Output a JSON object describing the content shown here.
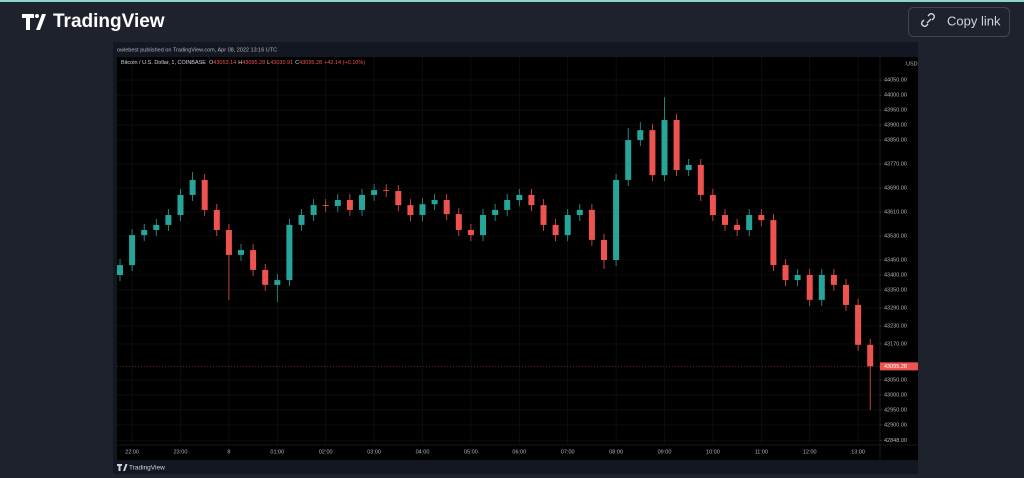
{
  "header": {
    "logo": "TradingView",
    "button": "Copy link"
  },
  "publish_note": "owlebest published on TradingView.com, Apr 08, 2022 13:16 UTC",
  "chart_data": {
    "type": "candlestick",
    "symbol": "Bitcoin / U.S. Dollar, 1, COINBASE",
    "ohlc_legend": [
      {
        "key": "O",
        "value": "43053.14"
      },
      {
        "key": "H",
        "value": "43095.28"
      },
      {
        "key": "L",
        "value": "43030.91"
      },
      {
        "key": "C",
        "value": "43095.28"
      }
    ],
    "change": "+42.14 (+0.10%)",
    "currency": "USD",
    "last_price_label": "43095.28",
    "up_color": "#26a69a",
    "down_color": "#ef5350",
    "categories": [
      null,
      "22:00",
      null,
      null,
      null,
      "23:00",
      null,
      null,
      null,
      "8",
      null,
      null,
      null,
      "01:00",
      null,
      null,
      null,
      "02:00",
      null,
      null,
      null,
      "03:00",
      null,
      null,
      null,
      "04:00",
      null,
      null,
      null,
      "05:00",
      null,
      null,
      null,
      "06:00",
      null,
      null,
      null,
      "07:00",
      null,
      null,
      null,
      "08:00",
      null,
      null,
      null,
      "09:00",
      null,
      null,
      null,
      "10:00",
      null,
      null,
      null,
      "11:00",
      null,
      null,
      null,
      "12:00",
      null,
      null,
      null,
      "13:00",
      null
    ],
    "open": [
      43400,
      43433,
      43533,
      43550,
      43567,
      43600,
      43667,
      43717,
      43617,
      43550,
      43467,
      43483,
      43417,
      43367,
      43383,
      43567,
      43600,
      43633,
      43630,
      43650,
      43617,
      43667,
      43683,
      43680,
      43633,
      43600,
      43636,
      43650,
      43603,
      43550,
      43533,
      43600,
      43617,
      43650,
      43667,
      43633,
      43567,
      43533,
      43600,
      43617,
      43517,
      43450,
      43717,
      43850,
      43883,
      43733,
      43917,
      43750,
      43767,
      43667,
      43600,
      43567,
      43550,
      43600,
      43583,
      43433,
      43383,
      43400,
      43317,
      43400,
      43367,
      43300,
      43167
    ],
    "high": [
      43453,
      43553,
      43570,
      43587,
      43620,
      43687,
      43743,
      43737,
      43637,
      43570,
      43503,
      43503,
      43437,
      43403,
      43587,
      43620,
      43653,
      43653,
      43670,
      43670,
      43687,
      43703,
      43703,
      43700,
      43653,
      43656,
      43670,
      43670,
      43623,
      43570,
      43620,
      43637,
      43670,
      43687,
      43687,
      43653,
      43587,
      43620,
      43637,
      43637,
      43537,
      43737,
      43890,
      43910,
      43903,
      43993,
      43937,
      43787,
      43787,
      43687,
      43620,
      43587,
      43620,
      43620,
      43603,
      43453,
      43420,
      43420,
      43420,
      43420,
      43387,
      43320,
      43187
    ],
    "low": [
      43380,
      43413,
      43513,
      43530,
      43547,
      43580,
      43647,
      43597,
      43530,
      43317,
      43447,
      43397,
      43347,
      43310,
      43363,
      43547,
      43580,
      43610,
      43610,
      43597,
      43597,
      43647,
      43660,
      43613,
      43580,
      43580,
      43616,
      43583,
      43530,
      43513,
      43513,
      43580,
      43597,
      43630,
      43613,
      43547,
      43513,
      43513,
      43580,
      43497,
      43420,
      43430,
      43697,
      43830,
      43713,
      43713,
      43730,
      43730,
      43647,
      43580,
      43547,
      43530,
      43530,
      43563,
      43413,
      43363,
      43363,
      43297,
      43297,
      43347,
      43280,
      43147,
      42950
    ],
    "close": [
      43433,
      43533,
      43550,
      43567,
      43600,
      43667,
      43717,
      43617,
      43550,
      43467,
      43483,
      43417,
      43367,
      43383,
      43567,
      43600,
      43633,
      43630,
      43650,
      43617,
      43667,
      43683,
      43680,
      43633,
      43600,
      43636,
      43650,
      43603,
      43550,
      43533,
      43600,
      43617,
      43650,
      43667,
      43633,
      43567,
      43533,
      43600,
      43617,
      43517,
      43450,
      43717,
      43850,
      43883,
      43733,
      43917,
      43750,
      43767,
      43667,
      43600,
      43567,
      43550,
      43600,
      43583,
      43433,
      43383,
      43400,
      43317,
      43400,
      43367,
      43300,
      43167,
      43095.28
    ],
    "ylim": [
      42833,
      44127
    ],
    "yticks": [
      {
        "value": 44050,
        "label": "44050.00"
      },
      {
        "value": 44000,
        "label": "44000.00"
      },
      {
        "value": 43950,
        "label": "43950.00"
      },
      {
        "value": 43900,
        "label": "43900.00"
      },
      {
        "value": 43850,
        "label": "43850.00"
      },
      {
        "value": 43770,
        "label": "43770.00"
      },
      {
        "value": 43690,
        "label": "43690.00"
      },
      {
        "value": 43610,
        "label": "43610.00"
      },
      {
        "value": 43530,
        "label": "43530.00"
      },
      {
        "value": 43450,
        "label": "43450.00"
      },
      {
        "value": 43400,
        "label": "43400.00"
      },
      {
        "value": 43350,
        "label": "43350.00"
      },
      {
        "value": 43290,
        "label": "43290.00"
      },
      {
        "value": 43230,
        "label": "43230.00"
      },
      {
        "value": 43170,
        "label": "43170.00"
      },
      {
        "value": 43050,
        "label": "43050.00"
      },
      {
        "value": 43000,
        "label": "43000.00"
      },
      {
        "value": 42950,
        "label": "42950.00"
      },
      {
        "value": 42900,
        "label": "42900.00"
      },
      {
        "value": 42848,
        "label": "42848.00"
      }
    ],
    "grid": true
  },
  "footer": {
    "watermark": "TradingView"
  }
}
